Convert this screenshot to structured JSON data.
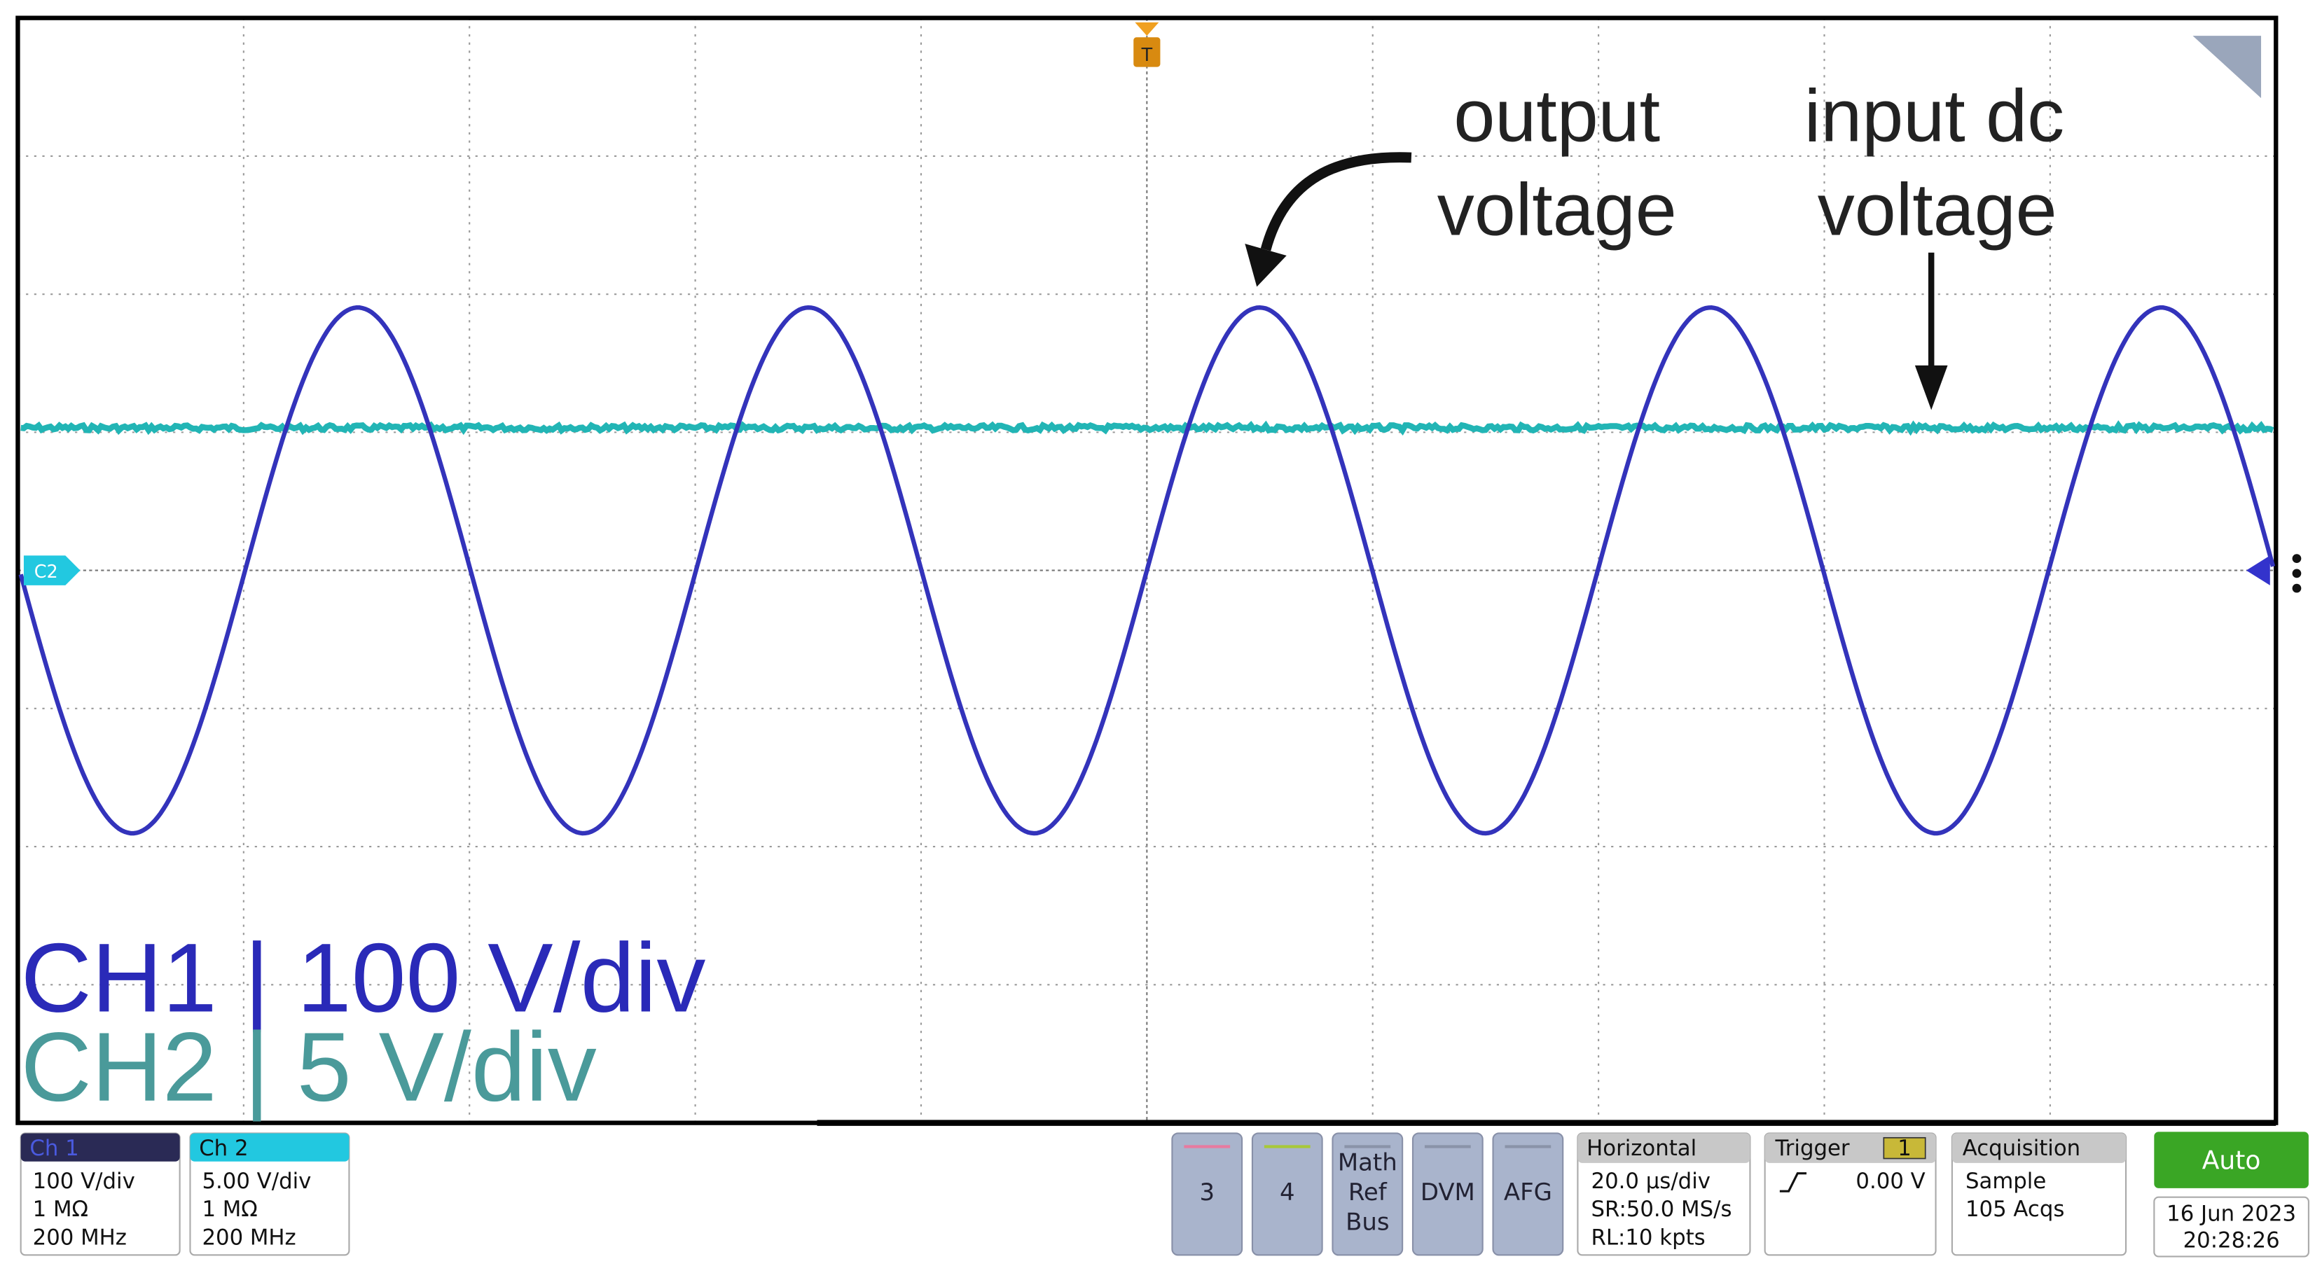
{
  "screen": {
    "trigger_marker": "T",
    "ch2_marker": "C2",
    "output_label": [
      "output",
      "voltage"
    ],
    "input_label": [
      "input dc",
      "voltage"
    ],
    "scale_lines": [
      "CH1 | 100 V/div",
      "CH2 | 5 V/div"
    ]
  },
  "channels": [
    {
      "name": "Ch 1",
      "scale": "100 V/div",
      "impedance": "1 MΩ",
      "bandwidth": "200 MHz"
    },
    {
      "name": "Ch 2",
      "scale": "5.00 V/div",
      "impedance": "1 MΩ",
      "bandwidth": "200 MHz"
    }
  ],
  "buttons": [
    [
      "3"
    ],
    [
      "4"
    ],
    [
      "Math",
      "Ref",
      "Bus"
    ],
    [
      "DVM"
    ],
    [
      "AFG"
    ]
  ],
  "horizontal": {
    "title": "Horizontal",
    "lines": [
      "20.0 µs/div",
      "SR:50.0 MS/s",
      "RL:10 kpts"
    ]
  },
  "trigger": {
    "title": "Trigger",
    "source": "1",
    "level": "0.00 V"
  },
  "acquisition": {
    "title": "Acquisition",
    "lines": [
      "Sample",
      "105 Acqs"
    ]
  },
  "mode": "Auto",
  "date": "16 Jun 2023",
  "time": "20:28:26"
}
